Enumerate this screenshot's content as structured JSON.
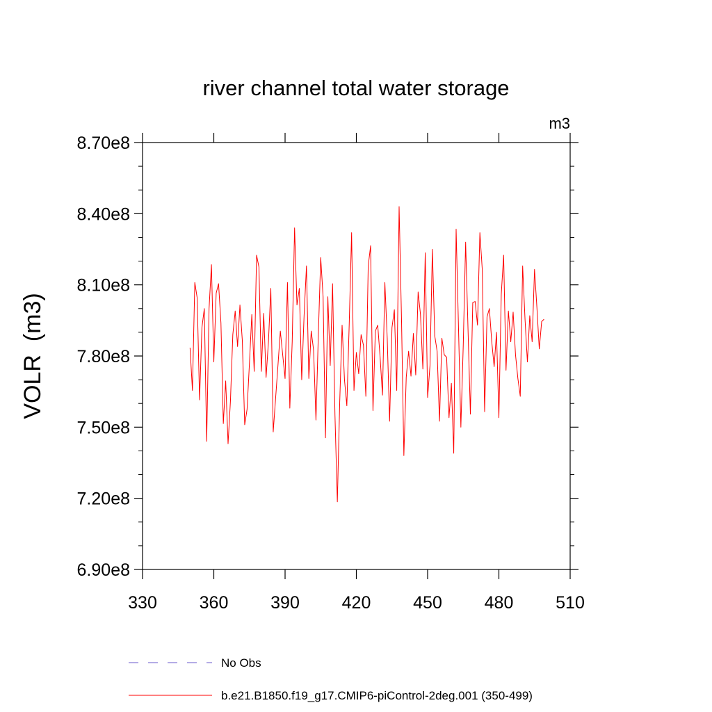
{
  "chart_data": {
    "type": "line",
    "title": "river channel total water storage",
    "units": "m3",
    "ylabel": "VOLR  (m3)",
    "xlabel": "",
    "xlim": [
      330,
      510
    ],
    "ylim": [
      690000000,
      870000000
    ],
    "xticks": [
      330,
      360,
      390,
      420,
      450,
      480,
      510
    ],
    "xtick_labels": [
      "330",
      "360",
      "390",
      "420",
      "450",
      "480",
      "510"
    ],
    "yticks": [
      690000000,
      720000000,
      750000000,
      780000000,
      810000000,
      840000000,
      870000000
    ],
    "ytick_labels": [
      "6.90e8",
      "7.20e8",
      "7.50e8",
      "7.80e8",
      "8.10e8",
      "8.40e8",
      "8.70e8"
    ],
    "grid": false,
    "legend": [
      {
        "label": "No Obs",
        "color": "#6a5acd",
        "dash": "dashed"
      },
      {
        "label": "b.e21.B1850.f19_g17.CMIP6-piControl-2deg.001 (350-499)",
        "color": "#ff0000",
        "dash": "solid"
      }
    ],
    "series": [
      {
        "name": "b.e21.B1850.f19_g17.CMIP6-piControl-2deg.001 (350-499)",
        "color": "#ff0000",
        "x_start": 350,
        "x_step": 1,
        "values": [
          783.5,
          765.5,
          811.0,
          804.5,
          761.5,
          792.0,
          800.0,
          744.0,
          800.0,
          818.5,
          777.5,
          806.5,
          810.5,
          794.0,
          751.5,
          769.5,
          743.0,
          761.0,
          789.0,
          799.0,
          784.0,
          801.5,
          786.5,
          751.0,
          757.5,
          777.0,
          797.5,
          773.5,
          822.5,
          817.5,
          773.5,
          798.0,
          771.0,
          786.0,
          808.5,
          748.0,
          762.0,
          776.0,
          790.5,
          780.5,
          770.5,
          811.0,
          758.0,
          786.0,
          834.0,
          801.5,
          808.5,
          770.0,
          797.0,
          818.0,
          770.5,
          790.5,
          782.5,
          753.0,
          789.0,
          821.5,
          805.0,
          745.5,
          805.0,
          776.0,
          810.5,
          755.0,
          718.5,
          760.5,
          793.0,
          770.0,
          759.0,
          793.5,
          832.0,
          765.5,
          781.5,
          772.5,
          789.0,
          784.5,
          763.0,
          818.0,
          826.5,
          757.0,
          790.5,
          793.0,
          779.5,
          763.5,
          811.0,
          787.5,
          752.5,
          792.0,
          799.5,
          765.5,
          843.0,
          796.0,
          738.0,
          771.0,
          782.0,
          771.5,
          789.5,
          772.0,
          807.0,
          797.5,
          774.5,
          823.5,
          762.5,
          776.0,
          825.0,
          788.5,
          782.0,
          752.5,
          787.5,
          780.5,
          779.5,
          754.0,
          768.5,
          739.0,
          833.5,
          792.0,
          750.0,
          784.5,
          828.0,
          791.5,
          755.5,
          802.5,
          803.0,
          793.0,
          832.0,
          816.5,
          756.5,
          796.5,
          800.0,
          786.0,
          775.5,
          790.0,
          754.0,
          806.0,
          822.5,
          774.0,
          799.0,
          786.0,
          798.5,
          780.5,
          770.5,
          763.0,
          818.0,
          795.5,
          777.5,
          797.0,
          786.0,
          816.5,
          800.5,
          783.0,
          794.5,
          795.5
        ],
        "values_unit_note": "values in 1e6 m3"
      }
    ]
  }
}
